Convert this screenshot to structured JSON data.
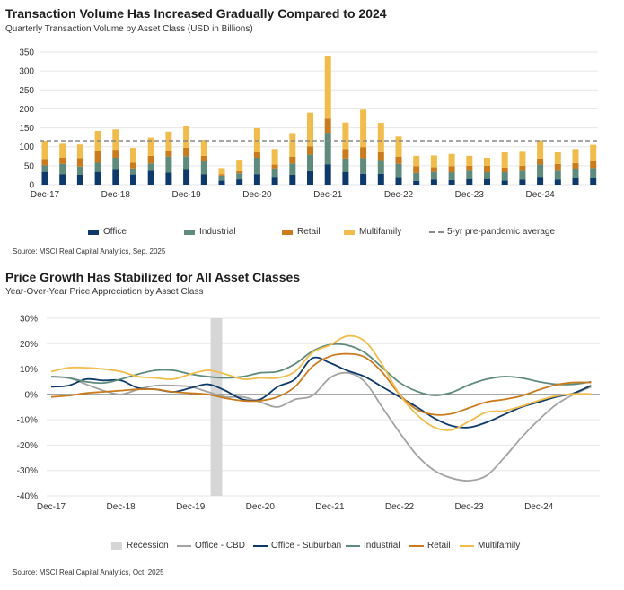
{
  "colors": {
    "office": "#0d3a6a",
    "industrial": "#5e8b7b",
    "retail": "#c97b1e",
    "multifamily": "#f0bd4c",
    "office_cbd": "#a3a3a3",
    "office_suburban": "#0d3a6a",
    "recession": "#d6d6d6",
    "avg": "#8a8a8a"
  },
  "chart_data": [
    {
      "type": "bar",
      "stacked": true,
      "title": "Transaction Volume Has Increased Gradually Compared to 2024",
      "subtitle": "Quarterly Transaction Volume by Asset Class (USD in Billions)",
      "source": "Source: MSCI Real Capital Analytics, Sep. 2025",
      "ylim": [
        0,
        350
      ],
      "y_ticks": [
        "0",
        "50",
        "100",
        "150",
        "200",
        "250",
        "300",
        "350"
      ],
      "x_tick_labels": [
        "Dec-17",
        "Dec-18",
        "Dec-19",
        "Dec-20",
        "Dec-21",
        "Dec-22",
        "Dec-23",
        "Dec-24"
      ],
      "grid": true,
      "legend_position": "bottom",
      "reference_line": {
        "name": "5-yr pre-pandemic average",
        "value": 116
      },
      "series": [
        {
          "name": "Office",
          "values": [
            34,
            28,
            26,
            34,
            39,
            27,
            37,
            32,
            39,
            28,
            11,
            14,
            28,
            21,
            26,
            36,
            54,
            34,
            29,
            29,
            20,
            10,
            13,
            12,
            15,
            15,
            11,
            13,
            21,
            13,
            17,
            18
          ]
        },
        {
          "name": "Industrial",
          "values": [
            17,
            27,
            22,
            24,
            32,
            16,
            19,
            42,
            36,
            35,
            13,
            16,
            43,
            22,
            30,
            43,
            83,
            35,
            41,
            36,
            35,
            21,
            21,
            21,
            22,
            18,
            22,
            24,
            32,
            24,
            24,
            26
          ]
        },
        {
          "name": "Retail",
          "values": [
            17,
            16,
            22,
            32,
            21,
            15,
            20,
            16,
            22,
            13,
            4,
            6,
            15,
            10,
            18,
            22,
            37,
            25,
            29,
            23,
            19,
            18,
            12,
            16,
            13,
            17,
            12,
            13,
            16,
            18,
            16,
            19
          ]
        },
        {
          "name": "Multifamily",
          "values": [
            48,
            37,
            36,
            52,
            54,
            39,
            48,
            50,
            59,
            42,
            16,
            30,
            63,
            41,
            62,
            89,
            165,
            70,
            99,
            75,
            53,
            27,
            31,
            32,
            26,
            21,
            40,
            39,
            48,
            32,
            37,
            42
          ]
        }
      ]
    },
    {
      "type": "line",
      "title": "Price Growth Has Stabilized for All Asset Classes",
      "subtitle": "Year-Over-Year Price Appreciation by Asset Class",
      "source": "Source: MSCI Real Capital Analytics, Oct. 2025",
      "ylim": [
        -40,
        30
      ],
      "y_ticks": [
        "30%",
        "20%",
        "10%",
        "0%",
        "-10%",
        "-20%",
        "-30%",
        "-40%"
      ],
      "x_tick_labels": [
        "Dec-17",
        "Dec-18",
        "Dec-19",
        "Dec-20",
        "Dec-21",
        "Dec-22",
        "Dec-23",
        "Dec-24"
      ],
      "x": [
        "Dec-17",
        "Mar-18",
        "Jun-18",
        "Sep-18",
        "Dec-18",
        "Mar-19",
        "Jun-19",
        "Sep-19",
        "Dec-19",
        "Mar-20",
        "Jun-20",
        "Sep-20",
        "Dec-20",
        "Mar-21",
        "Jun-21",
        "Sep-21",
        "Dec-21",
        "Mar-22",
        "Jun-22",
        "Sep-22",
        "Dec-22",
        "Mar-23",
        "Jun-23",
        "Sep-23",
        "Dec-23",
        "Mar-24",
        "Jun-24",
        "Sep-24",
        "Dec-24",
        "Mar-25",
        "Jun-25",
        "Sep-25"
      ],
      "grid": true,
      "legend_position": "bottom",
      "recession": {
        "name": "Recession",
        "start": "Mar-20",
        "end": "May-20"
      },
      "series": [
        {
          "name": "Office - CBD",
          "values": [
            7,
            6.5,
            4,
            1.5,
            0,
            2,
            3.5,
            3.5,
            3,
            1,
            -1,
            -1,
            -3,
            -5,
            -2,
            -0.5,
            6.5,
            8.5,
            5,
            -5,
            -15,
            -24,
            -30,
            -33,
            -34,
            -32,
            -25,
            -17,
            -10,
            -4,
            0,
            3
          ]
        },
        {
          "name": "Office - Suburban",
          "values": [
            3,
            3.5,
            6,
            5.5,
            5.5,
            2.5,
            2,
            1,
            2.5,
            4,
            1.5,
            -2,
            -2,
            3,
            6,
            14.3,
            12.4,
            9.4,
            7,
            3,
            -1,
            -5,
            -9.4,
            -12.4,
            -13,
            -11,
            -8,
            -5,
            -3,
            -1,
            0.5,
            3.5
          ]
        },
        {
          "name": "Industrial",
          "values": [
            7,
            6.5,
            5,
            4.5,
            6,
            8,
            9.5,
            9.5,
            8,
            7,
            6.5,
            7,
            8.5,
            9,
            12,
            17,
            19.6,
            19.4,
            16.5,
            10.6,
            4.7,
            1.2,
            -0.4,
            0.8,
            3.8,
            6,
            7,
            6.5,
            5,
            4,
            4,
            5
          ]
        },
        {
          "name": "Retail",
          "values": [
            -1,
            -0.5,
            0.5,
            1,
            1.5,
            2,
            2,
            1,
            0.5,
            0,
            -1.5,
            -2.5,
            -2.5,
            -1,
            3,
            11,
            15,
            16,
            14.7,
            8.8,
            0,
            -6,
            -8,
            -7.6,
            -5.3,
            -3,
            -2,
            -0.6,
            1.8,
            3.8,
            4.7,
            4.7
          ]
        },
        {
          "name": "Multifamily",
          "values": [
            9,
            10.5,
            10.5,
            10,
            9,
            7,
            6.5,
            6,
            8,
            9.5,
            8,
            6,
            6.5,
            6.5,
            9,
            16.5,
            19.4,
            23,
            21,
            11.8,
            0,
            -8,
            -13,
            -14,
            -10.6,
            -7,
            -6.5,
            -4.7,
            -2.4,
            -0.6,
            0.2,
            0.2
          ]
        }
      ]
    }
  ]
}
